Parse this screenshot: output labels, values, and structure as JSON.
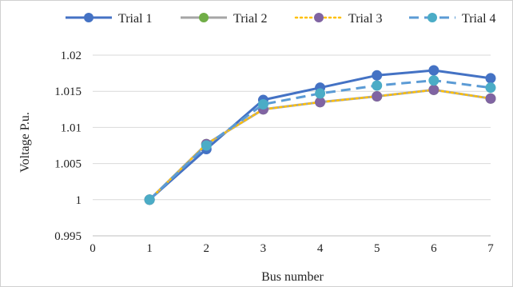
{
  "chart_data": {
    "type": "line",
    "title": "",
    "xlabel": "Bus number",
    "ylabel": "Voltage P.u.",
    "x": [
      1,
      2,
      3,
      4,
      5,
      6,
      7
    ],
    "xlim": [
      0,
      7
    ],
    "ylim": [
      0.995,
      1.02
    ],
    "x_ticks": [
      "0",
      "1",
      "2",
      "3",
      "4",
      "5",
      "6",
      "7"
    ],
    "y_ticks": [
      "0.995",
      "1",
      "1.005",
      "1.01",
      "1.015",
      "1.02"
    ],
    "grid": "horizontal",
    "legend_position": "top",
    "series": [
      {
        "name": "Trial 1",
        "color": "#4472c4",
        "style": "solid",
        "values": [
          1.0,
          1.007,
          1.0138,
          1.0155,
          1.0172,
          1.0179,
          1.0168
        ]
      },
      {
        "name": "Trial 2",
        "color": "#a5a5a5",
        "marker_color": "#70ad47",
        "style": "solid",
        "values": [
          1.0,
          1.0077,
          1.0125,
          1.0135,
          1.0143,
          1.0152,
          1.014
        ]
      },
      {
        "name": "Trial 3",
        "color": "#ffc000",
        "marker_color": "#8064a2",
        "style": "dotted",
        "values": [
          1.0,
          1.0077,
          1.0125,
          1.0135,
          1.0143,
          1.0152,
          1.014
        ]
      },
      {
        "name": "Trial 4",
        "color": "#5b9bd5",
        "marker_color": "#4bacc6",
        "style": "dashed",
        "values": [
          1.0,
          1.0075,
          1.0132,
          1.0147,
          1.0158,
          1.0165,
          1.0155
        ]
      }
    ]
  }
}
